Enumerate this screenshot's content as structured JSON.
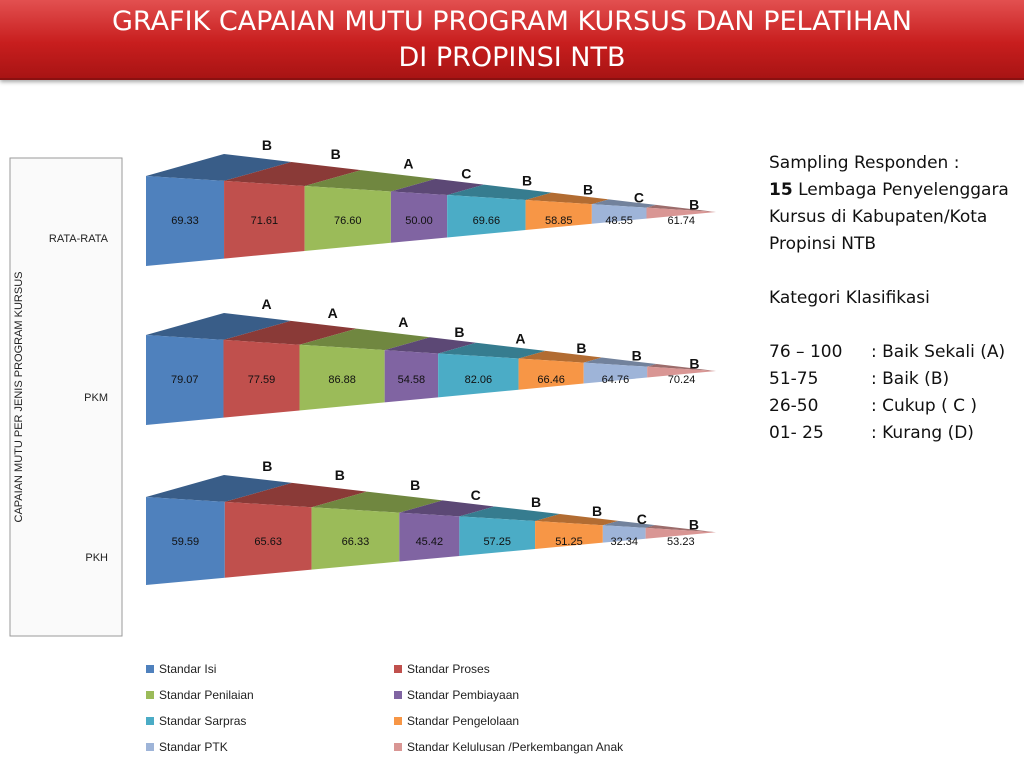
{
  "title": {
    "line1": "GRAFIK CAPAIAN MUTU PROGRAM KURSUS DAN PELATIHAN",
    "line2": "DI PROPINSI NTB"
  },
  "side_panel": {
    "sampling_label": "Sampling Responden   :",
    "sampling_count": "15",
    "sampling_text": "Lembaga Penyelenggara Kursus di Kabupaten/Kota  Propinsi NTB",
    "category_title": "Kategori Klasifikasi",
    "categories": [
      {
        "range": "76 – 100",
        "label": ": Baik Sekali (A)"
      },
      {
        "range": "51-75",
        "label": ": Baik (B)"
      },
      {
        "range": "26-50",
        "label": ": Cukup ( C )"
      },
      {
        "range": "01- 25",
        "label": ": Kurang (D)"
      }
    ]
  },
  "colors": {
    "series": [
      "#4f81bd",
      "#c0504d",
      "#9bbb59",
      "#8064a2",
      "#4bacc6",
      "#f79646",
      "#9eb4d8",
      "#d99694"
    ]
  },
  "chart_data": {
    "type": "bar",
    "orientation": "horizontal",
    "stacked": true,
    "title": "",
    "ylabel": "CAPAIAN MUTU PER JENIS PROGRAM KURSUS",
    "xlabel": "",
    "legend_position": "bottom",
    "categories": [
      "RATA-RATA",
      "PKM",
      "PKH"
    ],
    "series": [
      {
        "name": "Standar Isi",
        "values": [
          69.33,
          79.07,
          59.59
        ],
        "grades": [
          "B",
          "A",
          "B"
        ]
      },
      {
        "name": "Standar Proses",
        "values": [
          71.61,
          77.59,
          65.63
        ],
        "grades": [
          "B",
          "A",
          "B"
        ]
      },
      {
        "name": "Standar Penilaian",
        "values": [
          76.6,
          86.88,
          66.33
        ],
        "grades": [
          "A",
          "A",
          "B"
        ]
      },
      {
        "name": "Standar Pembiayaan",
        "values": [
          50.0,
          54.58,
          45.42
        ],
        "grades": [
          "C",
          "B",
          "C"
        ]
      },
      {
        "name": "Standar Sarpras",
        "values": [
          69.66,
          82.06,
          57.25
        ],
        "grades": [
          "B",
          "A",
          "B"
        ]
      },
      {
        "name": "Standar Pengelolaan",
        "values": [
          58.85,
          66.46,
          51.25
        ],
        "grades": [
          "B",
          "B",
          "B"
        ]
      },
      {
        "name": "Standar PTK",
        "values": [
          48.55,
          64.76,
          32.34
        ],
        "grades": [
          "C",
          "B",
          "C"
        ]
      },
      {
        "name": "Standar Kelulusan /Perkembangan Anak",
        "values": [
          61.74,
          70.24,
          53.23
        ],
        "grades": [
          "B",
          "B",
          "B"
        ]
      }
    ]
  }
}
